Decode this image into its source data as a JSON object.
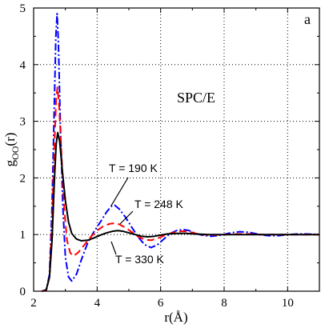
{
  "chart_data": {
    "type": "line",
    "panel_label": "a",
    "model_label": "SPC/E",
    "xlabel": "r(Å)",
    "ylabel_main": "g",
    "ylabel_sub": "OO",
    "ylabel_tail": "(r)",
    "xlim": [
      2,
      11
    ],
    "ylim": [
      0,
      5
    ],
    "x_ticks": [
      "2",
      "4",
      "6",
      "8",
      "10"
    ],
    "y_ticks": [
      "0",
      "1",
      "2",
      "3",
      "4",
      "5"
    ],
    "grid": "dotted",
    "colors": {
      "black": "#000000",
      "red": "#ff0000",
      "blue": "#0000ff"
    },
    "series": [
      {
        "name": "T = 190 K",
        "color": "#0000ff",
        "style": "dash-dot",
        "points": [
          [
            2.25,
            0
          ],
          [
            2.4,
            0.02
          ],
          [
            2.5,
            0.3
          ],
          [
            2.58,
            1.5
          ],
          [
            2.64,
            3.0
          ],
          [
            2.7,
            4.5
          ],
          [
            2.74,
            4.9
          ],
          [
            2.78,
            4.4
          ],
          [
            2.84,
            3.0
          ],
          [
            2.92,
            1.5
          ],
          [
            3.0,
            0.6
          ],
          [
            3.1,
            0.25
          ],
          [
            3.2,
            0.18
          ],
          [
            3.35,
            0.3
          ],
          [
            3.5,
            0.55
          ],
          [
            3.7,
            0.85
          ],
          [
            3.9,
            1.05
          ],
          [
            4.1,
            1.22
          ],
          [
            4.3,
            1.4
          ],
          [
            4.45,
            1.5
          ],
          [
            4.55,
            1.52
          ],
          [
            4.7,
            1.45
          ],
          [
            4.9,
            1.3
          ],
          [
            5.1,
            1.12
          ],
          [
            5.3,
            0.95
          ],
          [
            5.5,
            0.82
          ],
          [
            5.7,
            0.77
          ],
          [
            5.9,
            0.82
          ],
          [
            6.1,
            0.92
          ],
          [
            6.3,
            1.02
          ],
          [
            6.5,
            1.07
          ],
          [
            6.7,
            1.09
          ],
          [
            6.9,
            1.07
          ],
          [
            7.1,
            1.02
          ],
          [
            7.3,
            0.99
          ],
          [
            7.6,
            0.97
          ],
          [
            7.9,
            0.99
          ],
          [
            8.2,
            1.03
          ],
          [
            8.5,
            1.05
          ],
          [
            8.8,
            1.04
          ],
          [
            9.1,
            1.0
          ],
          [
            9.4,
            0.98
          ],
          [
            9.7,
            0.98
          ],
          [
            10.0,
            1.0
          ],
          [
            10.3,
            1.01
          ],
          [
            10.6,
            1.01
          ],
          [
            11.0,
            1.0
          ]
        ]
      },
      {
        "name": "T = 248 K",
        "color": "#ff0000",
        "style": "dashed",
        "points": [
          [
            2.25,
            0
          ],
          [
            2.4,
            0.02
          ],
          [
            2.5,
            0.25
          ],
          [
            2.58,
            1.2
          ],
          [
            2.65,
            2.5
          ],
          [
            2.71,
            3.4
          ],
          [
            2.75,
            3.6
          ],
          [
            2.8,
            3.3
          ],
          [
            2.88,
            2.4
          ],
          [
            2.96,
            1.5
          ],
          [
            3.05,
            0.9
          ],
          [
            3.15,
            0.68
          ],
          [
            3.25,
            0.62
          ],
          [
            3.4,
            0.68
          ],
          [
            3.6,
            0.82
          ],
          [
            3.8,
            0.96
          ],
          [
            4.0,
            1.07
          ],
          [
            4.2,
            1.15
          ],
          [
            4.4,
            1.19
          ],
          [
            4.55,
            1.2
          ],
          [
            4.7,
            1.18
          ],
          [
            4.9,
            1.12
          ],
          [
            5.1,
            1.04
          ],
          [
            5.3,
            0.96
          ],
          [
            5.5,
            0.91
          ],
          [
            5.7,
            0.9
          ],
          [
            5.9,
            0.93
          ],
          [
            6.1,
            0.98
          ],
          [
            6.3,
            1.02
          ],
          [
            6.5,
            1.05
          ],
          [
            6.7,
            1.06
          ],
          [
            6.9,
            1.05
          ],
          [
            7.1,
            1.02
          ],
          [
            7.3,
            1.0
          ],
          [
            7.6,
            0.99
          ],
          [
            8.0,
            1.0
          ],
          [
            8.4,
            1.01
          ],
          [
            8.8,
            1.01
          ],
          [
            9.2,
            1.0
          ],
          [
            9.6,
            1.0
          ],
          [
            10.0,
            1.0
          ],
          [
            10.5,
            1.0
          ],
          [
            11.0,
            1.0
          ]
        ]
      },
      {
        "name": "T = 330 K",
        "color": "#000000",
        "style": "solid",
        "points": [
          [
            2.3,
            0
          ],
          [
            2.4,
            0.03
          ],
          [
            2.5,
            0.25
          ],
          [
            2.58,
            0.9
          ],
          [
            2.65,
            1.9
          ],
          [
            2.71,
            2.6
          ],
          [
            2.76,
            2.8
          ],
          [
            2.82,
            2.65
          ],
          [
            2.9,
            2.15
          ],
          [
            3.0,
            1.6
          ],
          [
            3.1,
            1.22
          ],
          [
            3.2,
            1.02
          ],
          [
            3.35,
            0.92
          ],
          [
            3.5,
            0.89
          ],
          [
            3.7,
            0.9
          ],
          [
            3.9,
            0.94
          ],
          [
            4.1,
            0.99
          ],
          [
            4.3,
            1.03
          ],
          [
            4.5,
            1.06
          ],
          [
            4.65,
            1.07
          ],
          [
            4.8,
            1.06
          ],
          [
            5.0,
            1.03
          ],
          [
            5.2,
            1.0
          ],
          [
            5.4,
            0.97
          ],
          [
            5.6,
            0.96
          ],
          [
            5.8,
            0.97
          ],
          [
            6.0,
            0.99
          ],
          [
            6.2,
            1.01
          ],
          [
            6.5,
            1.02
          ],
          [
            6.8,
            1.02
          ],
          [
            7.1,
            1.01
          ],
          [
            7.5,
            1.0
          ],
          [
            8.0,
            1.0
          ],
          [
            8.5,
            1.0
          ],
          [
            9.0,
            1.0
          ],
          [
            9.5,
            1.0
          ],
          [
            10.0,
            1.0
          ],
          [
            10.5,
            1.0
          ],
          [
            11.0,
            1.0
          ]
        ]
      }
    ]
  }
}
